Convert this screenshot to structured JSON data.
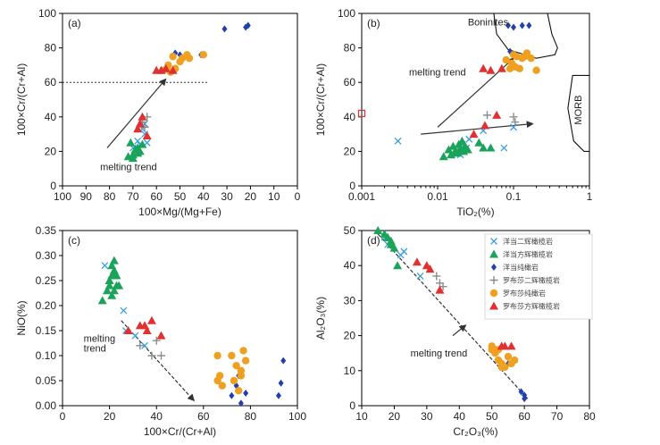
{
  "colors": {
    "gabbro_pyroxenite": "#3aa0e0",
    "harzburgite_ext": "#1aa35a",
    "dunite_ext": "#2040b0",
    "cpx_harzburgite": "#8c8c8c",
    "dunite_luobusa": "#f0a020",
    "pyrox_harzburgite": "#e03030",
    "trend": "#333333"
  },
  "legend": {
    "items": [
      {
        "label": "洋当二辉橄榄岩",
        "marker": "x",
        "color": "#3aa0e0"
      },
      {
        "label": "洋当方辉橄榄岩",
        "marker": "triangle",
        "color": "#1aa35a"
      },
      {
        "label": "洋当纯橄岩",
        "marker": "diamond",
        "color": "#2040b0"
      },
      {
        "label": "罗布莎二辉橄榄岩",
        "marker": "plus",
        "color": "#8c8c8c"
      },
      {
        "label": "罗布莎纯橄岩",
        "marker": "circle",
        "color": "#f0a020"
      },
      {
        "label": "罗布莎方辉橄榄岩",
        "marker": "triangle",
        "color": "#e03030"
      }
    ]
  },
  "chart_data": [
    {
      "id": "a",
      "panel_label": "(a)",
      "type": "scatter",
      "xlabel": "100×Mg/(Mg+Fe)",
      "ylabel": "100×Cr/(Cr+Al)",
      "xlim": [
        100,
        0
      ],
      "ylim": [
        0,
        100
      ],
      "xticks": [
        100,
        90,
        80,
        70,
        60,
        50,
        40,
        30,
        20,
        10,
        0
      ],
      "yticks": [
        0,
        20,
        40,
        60,
        80,
        100
      ],
      "annotation": "melting trend",
      "reference_line_y": 60,
      "trend_arrow": {
        "from": [
          81,
          22
        ],
        "to": [
          56,
          62
        ]
      },
      "series": [
        {
          "name": "洋当二辉橄榄岩",
          "marker": "x",
          "color": "#3aa0e0",
          "x": [
            64,
            65,
            66,
            67,
            65,
            68,
            70
          ],
          "y": [
            25,
            30,
            33,
            24,
            36,
            26,
            22
          ]
        },
        {
          "name": "洋当方辉橄榄岩",
          "marker": "triangle",
          "color": "#1aa35a",
          "x": [
            71,
            69,
            70,
            68,
            67,
            72,
            66,
            70,
            68
          ],
          "y": [
            25,
            21,
            18,
            22,
            20,
            17,
            24,
            16,
            19
          ]
        },
        {
          "name": "洋当纯橄岩",
          "marker": "diamond",
          "color": "#2040b0",
          "x": [
            31,
            22,
            21,
            50,
            52,
            41
          ],
          "y": [
            91,
            92,
            93,
            76,
            77,
            76
          ]
        },
        {
          "name": "罗布莎二辉橄榄岩",
          "marker": "plus",
          "color": "#8c8c8c",
          "x": [
            64,
            66,
            65
          ],
          "y": [
            40,
            37,
            34
          ]
        },
        {
          "name": "罗布莎纯橄岩",
          "marker": "circle",
          "color": "#f0a020",
          "x": [
            54,
            52,
            50,
            49,
            46,
            55,
            53,
            57,
            47,
            40
          ],
          "y": [
            66,
            68,
            72,
            74,
            74,
            70,
            75,
            67,
            76,
            76
          ]
        },
        {
          "name": "罗布莎方辉橄榄岩",
          "marker": "triangle",
          "color": "#e03030",
          "x": [
            66,
            68,
            64,
            67,
            60,
            56,
            58,
            53
          ],
          "y": [
            40,
            33,
            29,
            36,
            67,
            68,
            67,
            67
          ]
        }
      ]
    },
    {
      "id": "b",
      "panel_label": "(b)",
      "type": "scatter",
      "xscale": "log",
      "xlabel": "TiO₂(%)",
      "ylabel": "100×Cr/(Cr+Al)",
      "xlim": [
        0.001,
        1
      ],
      "ylim": [
        0,
        100
      ],
      "xticks": [
        0.001,
        0.01,
        0.1,
        1
      ],
      "xtick_labels": [
        "0.001",
        "0.01",
        "0.1",
        "1"
      ],
      "yticks": [
        0,
        20,
        40,
        60,
        80,
        100
      ],
      "annotation": "melting trend",
      "field_labels": [
        "Boninites",
        "MORB"
      ],
      "trend_arrows": [
        {
          "from": [
            0.01,
            34
          ],
          "to": [
            0.1,
            74
          ]
        },
        {
          "from": [
            0.006,
            30
          ],
          "to": [
            0.18,
            36
          ]
        }
      ],
      "series": [
        {
          "name": "洋当二辉橄榄岩",
          "marker": "x",
          "color": "#3aa0e0",
          "x": [
            0.003,
            0.02,
            0.024,
            0.026,
            0.04,
            0.075,
            0.1,
            0.021
          ],
          "y": [
            26,
            18,
            22,
            27,
            32,
            22,
            34,
            24
          ]
        },
        {
          "name": "洋当方辉橄榄岩",
          "marker": "triangle",
          "color": "#1aa35a",
          "x": [
            0.012,
            0.014,
            0.016,
            0.017,
            0.018,
            0.019,
            0.02,
            0.021,
            0.022,
            0.023,
            0.025,
            0.04,
            0.05,
            0.035,
            0.015,
            0.019
          ],
          "y": [
            17,
            21,
            23,
            20,
            19,
            24,
            22,
            26,
            20,
            23,
            21,
            22,
            22,
            25,
            18,
            20
          ]
        },
        {
          "name": "洋当纯橄岩",
          "marker": "diamond",
          "color": "#2040b0",
          "x": [
            0.085,
            0.1,
            0.13,
            0.16,
            0.09
          ],
          "y": [
            93,
            92,
            93,
            93,
            78
          ]
        },
        {
          "name": "罗布莎二辉橄榄岩",
          "marker": "plus",
          "color": "#8c8c8c",
          "x": [
            0.045,
            0.1,
            0.105
          ],
          "y": [
            41,
            40,
            37
          ]
        },
        {
          "name": "罗布莎纯橄岩",
          "marker": "circle",
          "color": "#f0a020",
          "x": [
            0.08,
            0.09,
            0.1,
            0.11,
            0.12,
            0.13,
            0.15,
            0.17,
            0.2,
            0.095,
            0.14,
            0.105
          ],
          "y": [
            73,
            68,
            76,
            75,
            68,
            74,
            77,
            74,
            67,
            71,
            75,
            69
          ]
        },
        {
          "name": "罗布莎方辉橄榄岩",
          "marker": "triangle",
          "color": "#e03030",
          "x": [
            0.04,
            0.05,
            0.06,
            0.042,
            0.03,
            0.07
          ],
          "y": [
            68,
            67,
            41,
            35,
            30,
            68
          ]
        },
        {
          "name": "outlier",
          "marker": "open-square",
          "color": "#e03030",
          "x": [
            0.001
          ],
          "y": [
            42
          ]
        }
      ]
    },
    {
      "id": "c",
      "panel_label": "(c)",
      "type": "scatter",
      "xlabel": "100×Cr/(Cr+Al)",
      "ylabel": "NiO(%)",
      "xlim": [
        0,
        100
      ],
      "ylim": [
        0,
        0.35
      ],
      "xticks": [
        0,
        20,
        40,
        60,
        80,
        100
      ],
      "yticks": [
        0,
        0.05,
        0.1,
        0.15,
        0.2,
        0.25,
        0.3,
        0.35
      ],
      "ytick_labels": [
        "0.00",
        "0.05",
        "0.10",
        "0.15",
        "0.20",
        "0.25",
        "0.30",
        "0.35"
      ],
      "annotation": "melting trend",
      "trend_arrow": {
        "from": [
          25,
          0.17
        ],
        "to": [
          56,
          0.01
        ]
      },
      "series": [
        {
          "name": "洋当二辉橄榄岩",
          "marker": "x",
          "color": "#3aa0e0",
          "x": [
            18,
            26,
            27,
            35,
            31
          ],
          "y": [
            0.28,
            0.19,
            0.15,
            0.12,
            0.14
          ]
        },
        {
          "name": "洋当方辉橄榄岩",
          "marker": "triangle",
          "color": "#1aa35a",
          "x": [
            17,
            19,
            20,
            21,
            22,
            22,
            23,
            21,
            20,
            22,
            23,
            24,
            21,
            20,
            22
          ],
          "y": [
            0.21,
            0.23,
            0.25,
            0.26,
            0.27,
            0.29,
            0.24,
            0.22,
            0.25,
            0.23,
            0.26,
            0.24,
            0.28,
            0.24,
            0.26
          ]
        },
        {
          "name": "洋当纯橄岩",
          "marker": "diamond",
          "color": "#2040b0",
          "x": [
            72,
            74,
            76,
            78,
            92,
            93,
            94,
            75
          ],
          "y": [
            0.02,
            0.04,
            0.005,
            0.025,
            0.02,
            0.045,
            0.09,
            0.06
          ]
        },
        {
          "name": "罗布莎二辉橄榄岩",
          "marker": "plus",
          "color": "#8c8c8c",
          "x": [
            33,
            38,
            40,
            42
          ],
          "y": [
            0.12,
            0.1,
            0.13,
            0.1
          ]
        },
        {
          "name": "罗布莎纯橄岩",
          "marker": "circle",
          "color": "#f0a020",
          "x": [
            66,
            67,
            68,
            72,
            74,
            76,
            77,
            75,
            73,
            66,
            78,
            76
          ],
          "y": [
            0.1,
            0.06,
            0.04,
            0.1,
            0.08,
            0.06,
            0.11,
            0.03,
            0.05,
            0.05,
            0.09,
            0.07
          ]
        },
        {
          "name": "罗布莎方辉橄榄岩",
          "marker": "triangle",
          "color": "#e03030",
          "x": [
            28,
            33,
            36,
            38,
            42,
            35
          ],
          "y": [
            0.15,
            0.16,
            0.15,
            0.17,
            0.14,
            0.16
          ]
        }
      ]
    },
    {
      "id": "d",
      "panel_label": "(d)",
      "type": "scatter",
      "xlabel": "Cr₂O₃(%)",
      "ylabel": "Al₂O₃(%)",
      "xlim": [
        10,
        80
      ],
      "ylim": [
        0,
        50
      ],
      "xticks": [
        10,
        20,
        30,
        40,
        50,
        60,
        70,
        80
      ],
      "yticks": [
        0,
        10,
        20,
        30,
        40,
        50
      ],
      "annotation": "melting trend",
      "trend_line": {
        "from": [
          15,
          49
        ],
        "to": [
          61,
          2
        ]
      },
      "trend_arrow": {
        "from": [
          38,
          20
        ],
        "to": [
          42,
          23
        ]
      },
      "series": [
        {
          "name": "洋当二辉橄榄岩",
          "marker": "x",
          "color": "#3aa0e0",
          "x": [
            17,
            18,
            22,
            23,
            28
          ],
          "y": [
            48,
            46,
            43,
            44,
            37
          ]
        },
        {
          "name": "洋当方辉橄榄岩",
          "marker": "triangle",
          "color": "#1aa35a",
          "x": [
            15,
            17,
            18,
            19,
            20,
            21,
            19,
            18
          ],
          "y": [
            50,
            49,
            48,
            47,
            45,
            40,
            46,
            48
          ]
        },
        {
          "name": "洋当纯橄岩",
          "marker": "diamond",
          "color": "#2040b0",
          "x": [
            55,
            59,
            60,
            60
          ],
          "y": [
            12,
            4,
            3,
            2
          ]
        },
        {
          "name": "罗布莎二辉橄榄岩",
          "marker": "plus",
          "color": "#8c8c8c",
          "x": [
            33,
            35,
            34
          ],
          "y": [
            37,
            34,
            35
          ]
        },
        {
          "name": "罗布莎纯橄岩",
          "marker": "circle",
          "color": "#f0a020",
          "x": [
            50,
            51,
            52,
            53,
            54,
            55,
            56,
            57,
            51,
            53,
            52,
            50
          ],
          "y": [
            17,
            15,
            13,
            12,
            11,
            14,
            12,
            13,
            16,
            11,
            16,
            16
          ]
        },
        {
          "name": "罗布莎方辉橄榄岩",
          "marker": "triangle",
          "color": "#e03030",
          "x": [
            27,
            30,
            31,
            34,
            53,
            54,
            56
          ],
          "y": [
            41,
            40,
            39,
            33,
            17,
            17,
            17
          ]
        }
      ]
    }
  ]
}
